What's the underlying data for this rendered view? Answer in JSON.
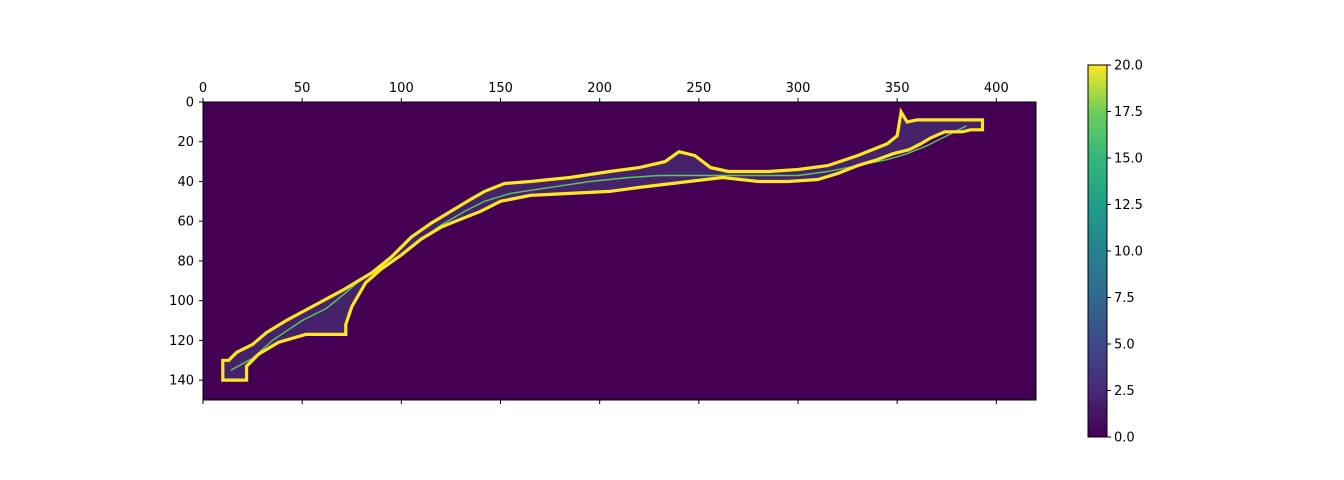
{
  "chart_data": {
    "type": "heatmap",
    "title": "",
    "xlabel": "",
    "ylabel": "",
    "x_axis": {
      "position": "top",
      "range": [
        0,
        420
      ],
      "ticks": [
        0,
        50,
        100,
        150,
        200,
        250,
        300,
        350,
        400
      ]
    },
    "y_axis": {
      "inverted": true,
      "range": [
        0,
        150
      ],
      "ticks": [
        0,
        20,
        40,
        60,
        80,
        100,
        120,
        140
      ]
    },
    "colormap": "viridis",
    "background_value": 0,
    "boundary_value": 20,
    "colorbar": {
      "range": [
        0,
        20
      ],
      "ticks": [
        "0.0",
        "2.5",
        "5.0",
        "7.5",
        "10.0",
        "12.5",
        "15.0",
        "17.5",
        "20.0"
      ]
    },
    "channel_boundary": [
      [
        10,
        140
      ],
      [
        10,
        130
      ],
      [
        13,
        130
      ],
      [
        17,
        126
      ],
      [
        25,
        122
      ],
      [
        32,
        116
      ],
      [
        42,
        110
      ],
      [
        55,
        103
      ],
      [
        70,
        95
      ],
      [
        85,
        86
      ],
      [
        95,
        78
      ],
      [
        105,
        68
      ],
      [
        115,
        61
      ],
      [
        125,
        55
      ],
      [
        135,
        49
      ],
      [
        142,
        45
      ],
      [
        152,
        41
      ],
      [
        165,
        40
      ],
      [
        185,
        38
      ],
      [
        205,
        35
      ],
      [
        220,
        33
      ],
      [
        233,
        30
      ],
      [
        240,
        25
      ],
      [
        248,
        27
      ],
      [
        256,
        33
      ],
      [
        265,
        35
      ],
      [
        285,
        35
      ],
      [
        300,
        34
      ],
      [
        315,
        32
      ],
      [
        330,
        27
      ],
      [
        345,
        21
      ],
      [
        350,
        17
      ],
      [
        352,
        5
      ],
      [
        355,
        10
      ],
      [
        360,
        9
      ],
      [
        375,
        9
      ],
      [
        393,
        9
      ],
      [
        393,
        14
      ],
      [
        387,
        14
      ],
      [
        383,
        15
      ],
      [
        374,
        15
      ],
      [
        367,
        18
      ],
      [
        362,
        21
      ],
      [
        356,
        24
      ],
      [
        348,
        26
      ],
      [
        340,
        29
      ],
      [
        330,
        32
      ],
      [
        320,
        36
      ],
      [
        310,
        39
      ],
      [
        295,
        40
      ],
      [
        280,
        40
      ],
      [
        262,
        38
      ],
      [
        245,
        40
      ],
      [
        220,
        43
      ],
      [
        205,
        45
      ],
      [
        185,
        46
      ],
      [
        165,
        47
      ],
      [
        150,
        50
      ],
      [
        140,
        55
      ],
      [
        130,
        59
      ],
      [
        120,
        63
      ],
      [
        110,
        69
      ],
      [
        100,
        77
      ],
      [
        90,
        84
      ],
      [
        82,
        91
      ],
      [
        75,
        103
      ],
      [
        72,
        112
      ],
      [
        72,
        117
      ],
      [
        52,
        117
      ],
      [
        38,
        121
      ],
      [
        28,
        127
      ],
      [
        22,
        133
      ],
      [
        22,
        140
      ]
    ],
    "centerline": [
      [
        14,
        135
      ],
      [
        25,
        129
      ],
      [
        35,
        120
      ],
      [
        50,
        110
      ],
      [
        62,
        104
      ],
      [
        72,
        96
      ],
      [
        80,
        89
      ],
      [
        92,
        83
      ],
      [
        100,
        77
      ],
      [
        110,
        69
      ],
      [
        120,
        62
      ],
      [
        132,
        55
      ],
      [
        142,
        50
      ],
      [
        155,
        46
      ],
      [
        175,
        43
      ],
      [
        195,
        40
      ],
      [
        215,
        38
      ],
      [
        230,
        37
      ],
      [
        245,
        37
      ],
      [
        260,
        37
      ],
      [
        280,
        37
      ],
      [
        300,
        37
      ],
      [
        315,
        35
      ],
      [
        330,
        32
      ],
      [
        345,
        29
      ],
      [
        355,
        26
      ],
      [
        365,
        22
      ],
      [
        375,
        17
      ],
      [
        385,
        12
      ]
    ]
  }
}
